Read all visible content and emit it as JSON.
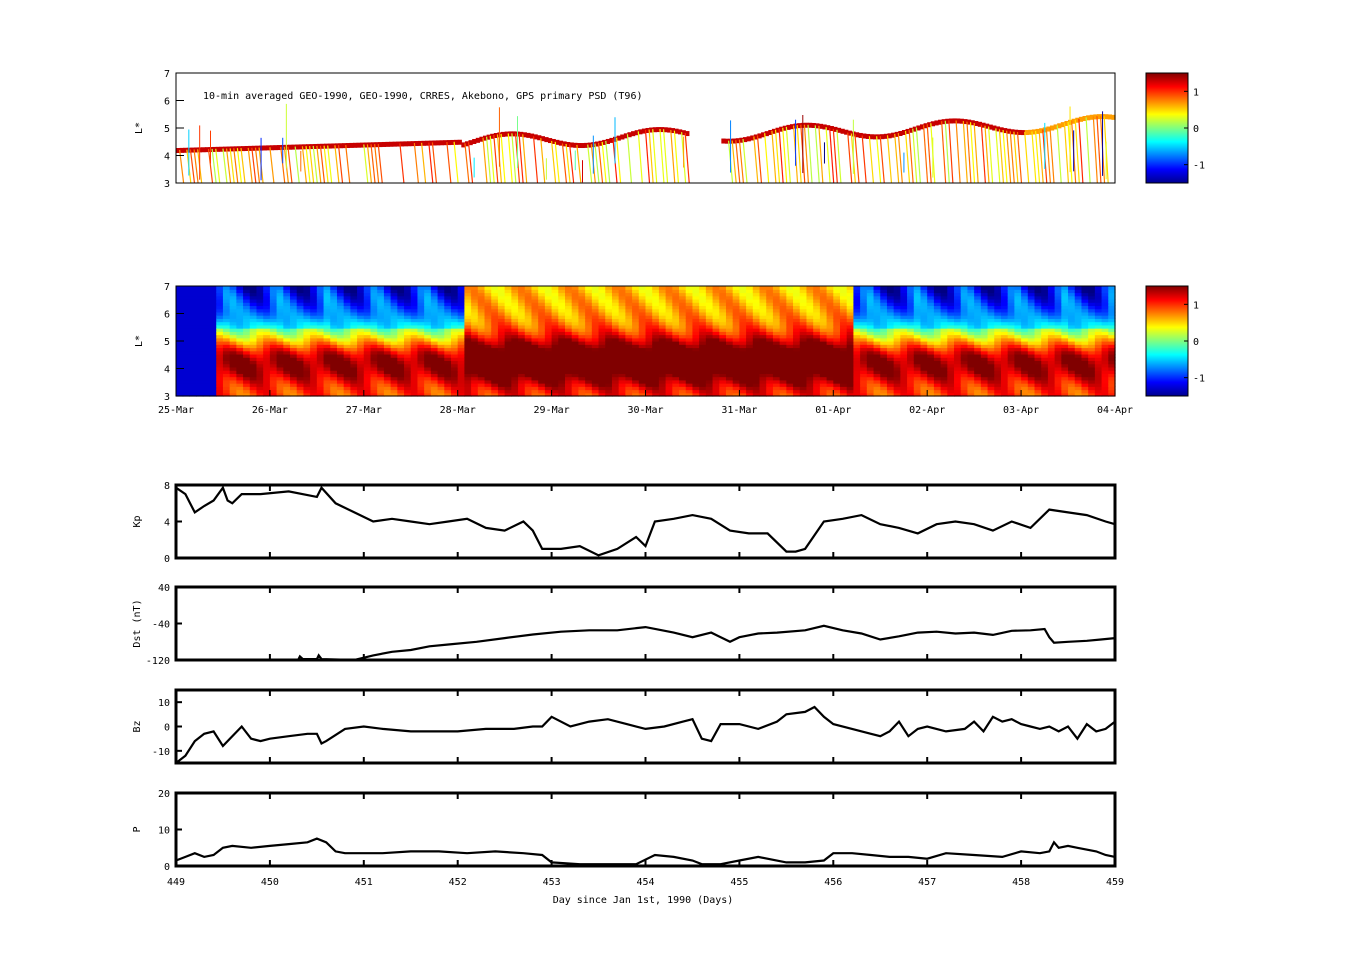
{
  "chart_data": [
    {
      "type": "heatmap",
      "id": "psd_obs",
      "title": "10-min averaged GEO-1990, GEO-1990, CRRES, Akebono, GPS  primary PSD (T96)",
      "ylabel": "L*",
      "ylim": [
        3,
        7
      ],
      "yticks": [
        "3",
        "4",
        "5",
        "6",
        "7"
      ],
      "colorbar_ticks": [
        "1",
        "0",
        "-1"
      ],
      "clim": [
        -1.5,
        1.5
      ]
    },
    {
      "type": "heatmap",
      "id": "psd_model",
      "ylabel": "L*",
      "ylim": [
        3,
        7
      ],
      "yticks": [
        "3",
        "4",
        "5",
        "6",
        "7"
      ],
      "xticks": [
        "25-Mar",
        "26-Mar",
        "27-Mar",
        "28-Mar",
        "29-Mar",
        "30-Mar",
        "31-Mar",
        "01-Apr",
        "02-Apr",
        "03-Apr",
        "04-Apr"
      ],
      "colorbar_ticks": [
        "1",
        "0",
        "-1"
      ],
      "clim": [
        -1.5,
        1.5
      ]
    },
    {
      "type": "line",
      "id": "kp",
      "ylabel": "Kp",
      "ylim": [
        0,
        8
      ],
      "yticks": [
        "0",
        "4",
        "8"
      ],
      "x": [
        449.0,
        449.1,
        449.2,
        449.3,
        449.4,
        449.5,
        449.55,
        449.6,
        449.7,
        449.9,
        450.2,
        450.5,
        450.55,
        450.7,
        450.9,
        451.1,
        451.3,
        451.5,
        451.7,
        451.9,
        452.1,
        452.3,
        452.5,
        452.7,
        452.8,
        452.9,
        453.1,
        453.3,
        453.5,
        453.7,
        453.9,
        454.0,
        454.1,
        454.3,
        454.5,
        454.7,
        454.9,
        455.1,
        455.3,
        455.5,
        455.6,
        455.7,
        455.9,
        456.1,
        456.3,
        456.5,
        456.7,
        456.9,
        457.1,
        457.3,
        457.5,
        457.7,
        457.9,
        458.1,
        458.3,
        458.5,
        458.7,
        458.9,
        459.0
      ],
      "y": [
        7.7,
        7.0,
        5.0,
        5.7,
        6.3,
        7.7,
        6.3,
        6.0,
        7.0,
        7.0,
        7.3,
        6.7,
        7.7,
        6.0,
        5.0,
        4.0,
        4.3,
        4.0,
        3.7,
        4.0,
        4.3,
        3.3,
        3.0,
        4.0,
        3.0,
        1.0,
        1.0,
        1.3,
        0.3,
        1.0,
        2.3,
        1.3,
        4.0,
        4.3,
        4.7,
        4.3,
        3.0,
        2.7,
        2.7,
        0.7,
        0.7,
        1.0,
        4.0,
        4.3,
        4.7,
        3.7,
        3.3,
        2.7,
        3.7,
        4.0,
        3.7,
        3.0,
        4.0,
        3.3,
        5.3,
        5.0,
        4.7,
        4.0,
        3.7
      ],
      "xlim": [
        449,
        459
      ]
    },
    {
      "type": "line",
      "id": "dst",
      "ylabel": "Dst (nT)",
      "ylim": [
        -120,
        40
      ],
      "yticks": [
        "-120",
        "-40",
        "40"
      ],
      "x": [
        450.3,
        450.32,
        450.35,
        450.5,
        450.52,
        450.55,
        450.9,
        451.1,
        451.3,
        451.5,
        451.7,
        451.9,
        452.2,
        452.5,
        452.8,
        453.1,
        453.4,
        453.7,
        454.0,
        454.3,
        454.5,
        454.7,
        454.9,
        455.0,
        455.2,
        455.4,
        455.7,
        455.9,
        456.1,
        456.3,
        456.5,
        456.7,
        456.9,
        457.1,
        457.3,
        457.5,
        457.7,
        457.9,
        458.1,
        458.25,
        458.3,
        458.35,
        458.5,
        458.7,
        458.85,
        459.0
      ],
      "y": [
        -120,
        -112,
        -118,
        -118,
        -110,
        -118,
        -120,
        -110,
        -102,
        -98,
        -90,
        -86,
        -80,
        -72,
        -64,
        -58,
        -55,
        -55,
        -48,
        -60,
        -70,
        -60,
        -80,
        -70,
        -62,
        -60,
        -55,
        -45,
        -55,
        -62,
        -75,
        -68,
        -60,
        -58,
        -62,
        -60,
        -65,
        -56,
        -55,
        -52,
        -70,
        -82,
        -80,
        -78,
        -75,
        -72
      ],
      "xlim": [
        449,
        459
      ]
    },
    {
      "type": "line",
      "id": "bz",
      "ylabel": "Bz",
      "ylim": [
        -15,
        15
      ],
      "yticks": [
        "-10",
        "0",
        "10"
      ],
      "x": [
        449.0,
        449.1,
        449.2,
        449.3,
        449.4,
        449.5,
        449.6,
        449.7,
        449.8,
        449.9,
        450.0,
        450.2,
        450.4,
        450.5,
        450.55,
        450.6,
        450.8,
        451.0,
        451.2,
        451.5,
        451.8,
        452.0,
        452.3,
        452.6,
        452.8,
        452.9,
        453.0,
        453.2,
        453.4,
        453.6,
        453.8,
        454.0,
        454.2,
        454.4,
        454.5,
        454.6,
        454.7,
        454.8,
        455.0,
        455.2,
        455.4,
        455.5,
        455.7,
        455.8,
        455.9,
        456.0,
        456.2,
        456.4,
        456.5,
        456.6,
        456.7,
        456.8,
        456.9,
        457.0,
        457.2,
        457.4,
        457.5,
        457.6,
        457.7,
        457.8,
        457.9,
        458.0,
        458.1,
        458.2,
        458.3,
        458.4,
        458.5,
        458.6,
        458.7,
        458.8,
        458.9,
        459.0
      ],
      "y": [
        -15,
        -12,
        -6,
        -3,
        -2,
        -8,
        -4,
        0,
        -5,
        -6,
        -5,
        -4,
        -3,
        -3,
        -7,
        -6,
        -1,
        0,
        -1,
        -2,
        -2,
        -2,
        -1,
        -1,
        0,
        0,
        4,
        0,
        2,
        3,
        1,
        -1,
        0,
        2,
        3,
        -5,
        -6,
        1,
        1,
        -1,
        2,
        5,
        6,
        8,
        4,
        1,
        -1,
        -3,
        -4,
        -2,
        2,
        -4,
        -1,
        0,
        -2,
        -1,
        2,
        -2,
        4,
        2,
        3,
        1,
        0,
        -1,
        0,
        -2,
        0,
        -5,
        1,
        -2,
        -1,
        2
      ],
      "xlim": [
        449,
        459
      ]
    },
    {
      "type": "line",
      "id": "pdyn",
      "ylabel": "P",
      "ylim": [
        0,
        20
      ],
      "yticks": [
        "0",
        "10",
        "20"
      ],
      "xlabel": "Day since Jan 1st, 1990 (Days)",
      "xticks": [
        "449",
        "450",
        "451",
        "452",
        "453",
        "454",
        "455",
        "456",
        "457",
        "458",
        "459"
      ],
      "x": [
        449.0,
        449.1,
        449.2,
        449.3,
        449.4,
        449.5,
        449.6,
        449.8,
        450.0,
        450.2,
        450.4,
        450.5,
        450.6,
        450.7,
        450.8,
        451.0,
        451.2,
        451.5,
        451.8,
        452.1,
        452.4,
        452.7,
        452.9,
        453.0,
        453.3,
        453.6,
        453.9,
        454.1,
        454.3,
        454.5,
        454.6,
        454.7,
        454.8,
        455.0,
        455.2,
        455.5,
        455.7,
        455.9,
        456.0,
        456.2,
        456.4,
        456.6,
        456.8,
        457.0,
        457.2,
        457.5,
        457.8,
        458.0,
        458.2,
        458.3,
        458.35,
        458.4,
        458.5,
        458.6,
        458.8,
        458.9,
        459.0
      ],
      "y": [
        1.5,
        2.5,
        3.5,
        2.5,
        3.0,
        5.0,
        5.5,
        5.0,
        5.5,
        6.0,
        6.5,
        7.5,
        6.5,
        4.0,
        3.5,
        3.5,
        3.5,
        4.0,
        4.0,
        3.5,
        4.0,
        3.5,
        3.0,
        1.0,
        0.5,
        0.5,
        0.5,
        3.0,
        2.5,
        1.5,
        0.5,
        0.5,
        0.5,
        1.5,
        2.5,
        1.0,
        1.0,
        1.5,
        3.5,
        3.5,
        3.0,
        2.5,
        2.5,
        2.0,
        3.5,
        3.0,
        2.5,
        4.0,
        3.5,
        4.0,
        6.5,
        5.0,
        5.5,
        5.0,
        4.0,
        3.0,
        2.5
      ],
      "xlim": [
        449,
        459
      ]
    }
  ]
}
